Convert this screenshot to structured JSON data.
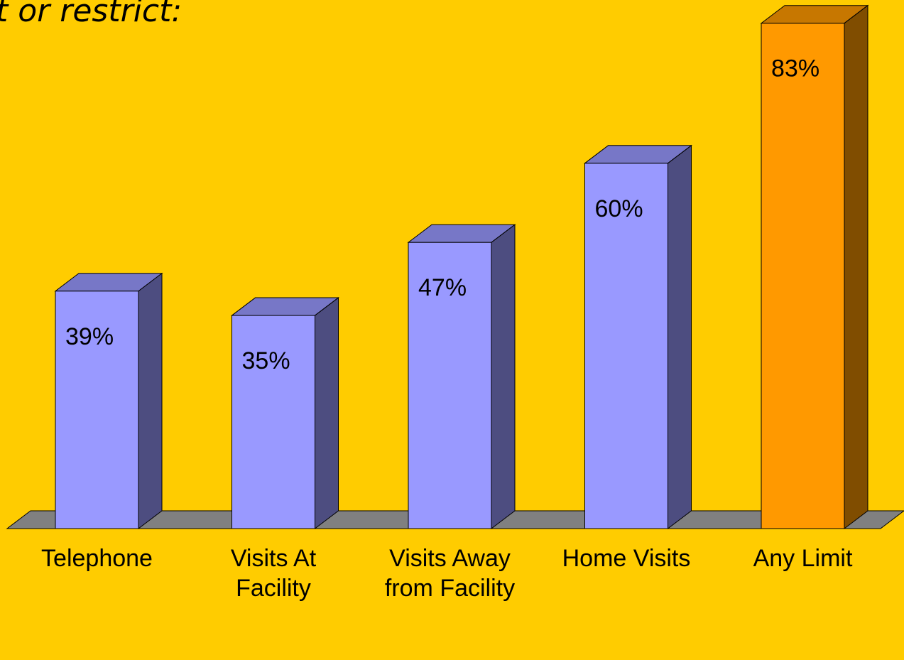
{
  "chart_data": {
    "type": "bar3d",
    "title": "t or restrict:",
    "categories": [
      "Telephone",
      "Visits At Facility",
      "Visits Away from Facility",
      "Home Visits",
      "Any Limit"
    ],
    "values": [
      39,
      35,
      47,
      60,
      83
    ],
    "value_labels": [
      "39%",
      "35%",
      "47%",
      "60%",
      "83%"
    ],
    "colors": [
      "#9999ff",
      "#9999ff",
      "#9999ff",
      "#9999ff",
      "#ff9900"
    ]
  }
}
